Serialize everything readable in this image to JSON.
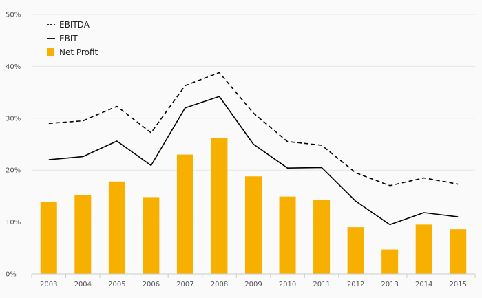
{
  "chart_data": {
    "type": "bar",
    "categories": [
      "2003",
      "2004",
      "2005",
      "2006",
      "2007",
      "2008",
      "2009",
      "2010",
      "2011",
      "2012",
      "2013",
      "2014",
      "2015"
    ],
    "ylim": [
      0,
      50
    ],
    "yticks": [
      {
        "value": 0,
        "label": "0%"
      },
      {
        "value": 10,
        "label": "10%"
      },
      {
        "value": 20,
        "label": "20%"
      },
      {
        "value": 30,
        "label": "30%"
      },
      {
        "value": 40,
        "label": "40%"
      },
      {
        "value": 50,
        "label": "50%"
      }
    ],
    "grid": true,
    "legend_position": "top-left",
    "series": [
      {
        "name": "EBITDA",
        "type": "line",
        "style": "dashed",
        "color": "#000000",
        "values": [
          29.0,
          29.5,
          32.3,
          27.2,
          36.3,
          38.8,
          31.0,
          25.5,
          24.8,
          19.5,
          17.0,
          18.5,
          17.3
        ]
      },
      {
        "name": "EBIT",
        "type": "line",
        "style": "solid",
        "color": "#000000",
        "values": [
          22.0,
          22.6,
          25.6,
          20.9,
          32.0,
          34.2,
          25.0,
          20.4,
          20.5,
          14.0,
          9.5,
          11.8,
          11.0
        ]
      },
      {
        "name": "Net Profit",
        "type": "bar",
        "color": "#f8b000",
        "values": [
          13.9,
          15.2,
          17.8,
          14.8,
          23.0,
          26.2,
          18.8,
          14.9,
          14.3,
          9.0,
          4.7,
          9.5,
          8.6
        ]
      }
    ]
  }
}
